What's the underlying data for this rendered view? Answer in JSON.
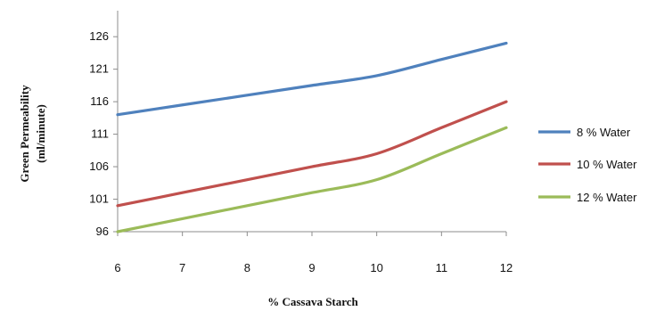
{
  "chart_data": {
    "type": "line",
    "xlabel": "% Cassava Starch",
    "ylabel_line1": "Green Permeability",
    "ylabel_line2": "(ml/minute)",
    "x": [
      6,
      7,
      8,
      9,
      10,
      11,
      12
    ],
    "x_ticks": [
      "6",
      "7",
      "8",
      "9",
      "10",
      "11",
      "12"
    ],
    "y_ticks": [
      "96",
      "101",
      "106",
      "111",
      "116",
      "121",
      "126"
    ],
    "xlim": [
      6,
      12
    ],
    "ylim": [
      96,
      130
    ],
    "grid": false,
    "legend_position": "right",
    "series": [
      {
        "name": "8 % Water",
        "color": "#4f81bd",
        "values": [
          114,
          115.5,
          117,
          118.5,
          120,
          122.5,
          125
        ]
      },
      {
        "name": "10 % Water",
        "color": "#c0504d",
        "values": [
          100,
          102,
          104,
          106,
          108,
          112,
          116
        ]
      },
      {
        "name": "12 % Water",
        "color": "#9bbb59",
        "values": [
          96,
          98,
          100,
          102,
          104,
          108,
          112
        ]
      }
    ]
  }
}
